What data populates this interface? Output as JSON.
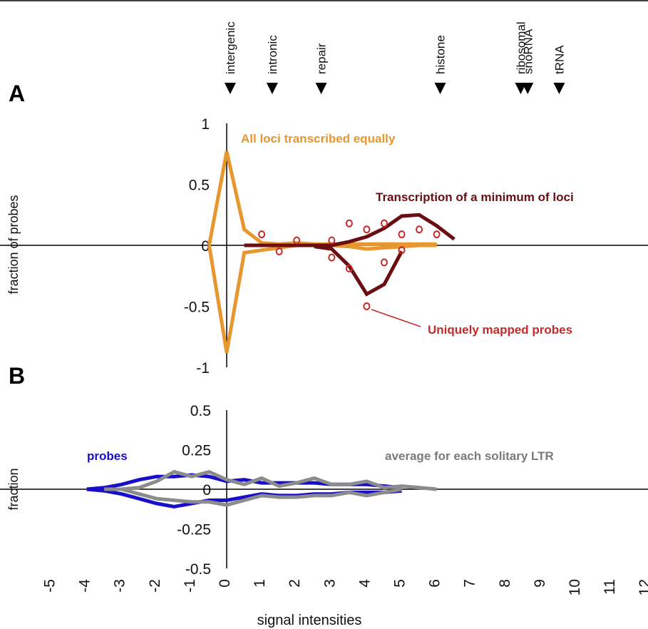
{
  "chart_data": [
    {
      "panel_label": "A",
      "type": "line",
      "xlabel": "",
      "ylabel": "fraction of probes",
      "xlim": [
        -5,
        12
      ],
      "ylim": [
        -1,
        1
      ],
      "y_ticks": [
        "1",
        "0.5",
        "0",
        "-0.5",
        "-1"
      ],
      "y_tick_values": [
        1,
        0.5,
        0,
        -0.5,
        -1
      ],
      "annotations": [
        {
          "label": "intergenic",
          "x": 0.1
        },
        {
          "label": "intronic",
          "x": 1.3
        },
        {
          "label": "repair",
          "x": 2.7
        },
        {
          "label": "histone",
          "x": 6.1
        },
        {
          "label": "ribosomal",
          "x": 8.4
        },
        {
          "label": "snoRNA",
          "x": 8.6
        },
        {
          "label": "tRNA",
          "x": 9.5
        }
      ],
      "series": [
        {
          "name": "All loci transcribed equally",
          "color": "#E8962E",
          "style": "line",
          "x": [
            -0.5,
            0,
            0.5,
            1,
            1.5,
            2,
            2.5,
            3,
            3.5,
            4,
            4.5,
            5,
            5.5,
            6
          ],
          "values": [
            0,
            0.77,
            0.13,
            0.02,
            0.01,
            0.02,
            0.01,
            0.01,
            0.01,
            0.01,
            0.01,
            0.01,
            0.01,
            0.01
          ]
        },
        {
          "name": "",
          "color": "#E8962E",
          "style": "line",
          "x": [
            -0.5,
            0,
            0.5,
            1,
            1.5,
            2,
            2.5,
            3,
            3.5,
            4,
            4.5,
            5,
            5.5,
            6
          ],
          "values": [
            0,
            -0.88,
            -0.06,
            -0.04,
            -0.02,
            0,
            0,
            0,
            -0.01,
            -0.03,
            -0.02,
            -0.01,
            0,
            0
          ]
        },
        {
          "name": "Transcription of a minimum of loci",
          "color": "#6B0E12",
          "style": "line",
          "x": [
            0.5,
            1,
            1.5,
            2,
            2.5,
            3,
            3.5,
            4,
            4.5,
            5,
            5.5,
            6,
            6.5
          ],
          "values": [
            0,
            0,
            0,
            0,
            0,
            0,
            0.03,
            0.07,
            0.14,
            0.24,
            0.25,
            0.16,
            0.05
          ]
        },
        {
          "name": "",
          "color": "#6B0E12",
          "style": "line",
          "x": [
            2.5,
            3,
            3.5,
            4,
            4.5,
            5
          ],
          "values": [
            -0.01,
            -0.03,
            -0.17,
            -0.4,
            -0.32,
            -0.05
          ]
        },
        {
          "name": "Uniquely mapped probes",
          "color": "#C42A2A",
          "style": "points",
          "x": [
            1,
            1.5,
            2,
            3,
            3,
            3.5,
            3.5,
            4,
            4,
            4.5,
            4.5,
            5,
            5,
            5.5,
            6
          ],
          "values": [
            0.09,
            -0.05,
            0.04,
            0.04,
            -0.1,
            0.18,
            -0.19,
            0.13,
            -0.5,
            0.18,
            -0.14,
            0.09,
            -0.04,
            0.13,
            0.09
          ]
        }
      ]
    },
    {
      "panel_label": "B",
      "type": "line",
      "xlabel": "signal intensities",
      "ylabel": "fraction",
      "xlim": [
        -5,
        12
      ],
      "ylim": [
        -0.5,
        0.5
      ],
      "x_ticks": [
        "-5",
        "-4",
        "-3",
        "-2",
        "-1",
        "0",
        "1",
        "2",
        "3",
        "4",
        "5",
        "6",
        "7",
        "8",
        "9",
        "10",
        "11",
        "12"
      ],
      "x_tick_values": [
        -5,
        -4,
        -3,
        -2,
        -1,
        0,
        1,
        2,
        3,
        4,
        5,
        6,
        7,
        8,
        9,
        10,
        11,
        12
      ],
      "y_ticks": [
        "0.5",
        "0.25",
        "0",
        "-0.25",
        "-0.5"
      ],
      "y_tick_values": [
        0.5,
        0.25,
        0,
        -0.25,
        -0.5
      ],
      "series": [
        {
          "name": "probes",
          "color": "#1A0FC8",
          "style": "line",
          "x": [
            -4,
            -3.5,
            -3,
            -2.5,
            -2,
            -1.5,
            -1,
            -0.5,
            0,
            0.5,
            1,
            1.5,
            2,
            2.5,
            3,
            3.5,
            4,
            4.5,
            5
          ],
          "values": [
            0,
            0.01,
            0.03,
            0.06,
            0.08,
            0.08,
            0.09,
            0.08,
            0.05,
            0.06,
            0.04,
            0.04,
            0.04,
            0.04,
            0.03,
            0.03,
            0.03,
            0.02,
            0.01
          ]
        },
        {
          "name": "",
          "color": "#1A0FC8",
          "style": "line",
          "x": [
            -4,
            -3.5,
            -3,
            -2.5,
            -2,
            -1.5,
            -1,
            -0.5,
            0,
            0.5,
            1,
            1.5,
            2,
            2.5,
            3,
            3.5,
            4,
            4.5,
            5
          ],
          "values": [
            0,
            -0.01,
            -0.03,
            -0.06,
            -0.09,
            -0.11,
            -0.09,
            -0.07,
            -0.07,
            -0.05,
            -0.03,
            -0.04,
            -0.04,
            -0.03,
            -0.03,
            -0.02,
            -0.02,
            -0.02,
            -0.01
          ]
        },
        {
          "name": "average for each solitary LTR",
          "color": "#8C8C8C",
          "style": "line",
          "x": [
            -3.5,
            -3,
            -2.5,
            -2,
            -1.5,
            -1,
            -0.5,
            0,
            0.5,
            1,
            1.5,
            2,
            2.5,
            3,
            3.5,
            4,
            4.5,
            5,
            5.5,
            6
          ],
          "values": [
            0,
            0,
            0.01,
            0.05,
            0.11,
            0.08,
            0.11,
            0.06,
            0.03,
            0.07,
            0.02,
            0.04,
            0.07,
            0.03,
            0.03,
            0.05,
            0.01,
            0.02,
            0.01,
            0
          ]
        },
        {
          "name": "",
          "color": "#8C8C8C",
          "style": "line",
          "x": [
            -3.5,
            -3,
            -2.5,
            -2,
            -1.5,
            -1,
            -0.5,
            0,
            0.5,
            1,
            1.5,
            2,
            2.5,
            3,
            3.5,
            4,
            4.5,
            5
          ],
          "values": [
            0,
            0,
            -0.03,
            -0.06,
            -0.07,
            -0.08,
            -0.08,
            -0.1,
            -0.07,
            -0.04,
            -0.05,
            -0.05,
            -0.04,
            -0.04,
            -0.02,
            -0.04,
            -0.02,
            0
          ]
        }
      ]
    }
  ]
}
